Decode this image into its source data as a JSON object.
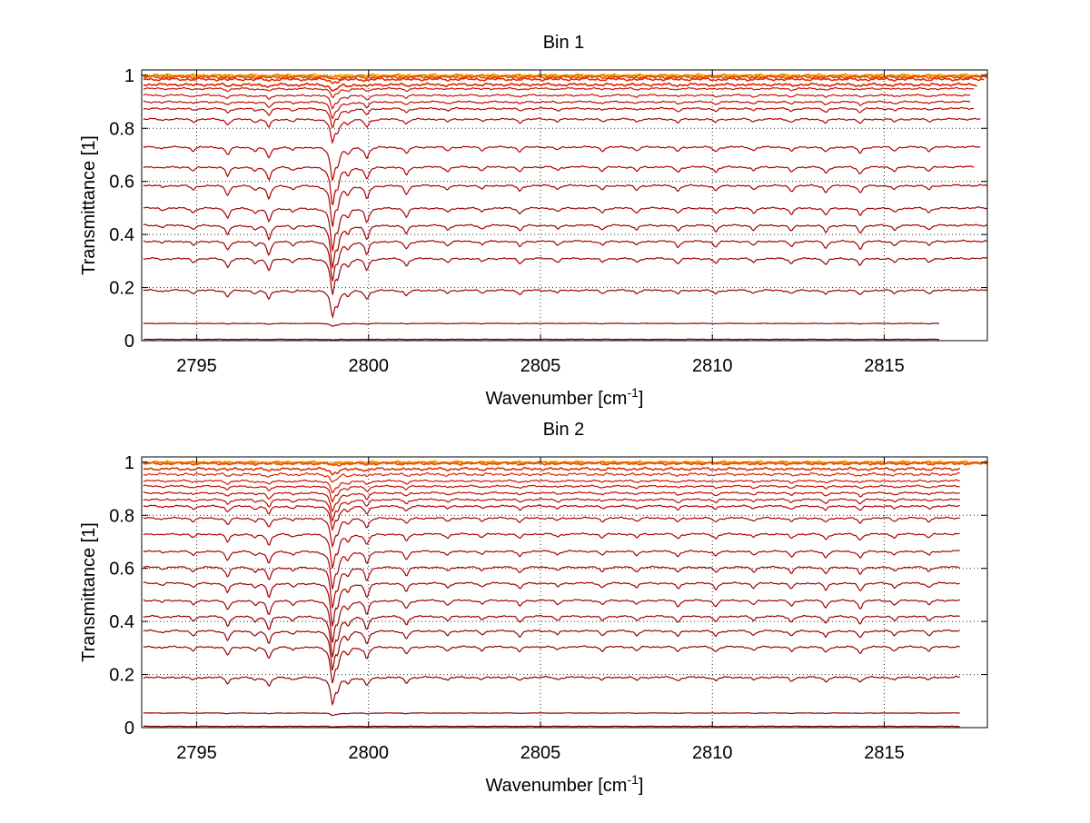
{
  "chart_data": [
    {
      "type": "line",
      "title": "Bin 1",
      "xlabel": "Wavenumber [cm",
      "xlabel_sup": "-1",
      "xlabel_end": "]",
      "ylabel": "Transmittance [1]",
      "xlim": [
        2793.4,
        2818.0
      ],
      "ylim": [
        0,
        1.02
      ],
      "xticks": [
        2795,
        2800,
        2805,
        2810,
        2815
      ],
      "xtick_labels": [
        "2795",
        "2800",
        "2805",
        "2810",
        "2815"
      ],
      "yticks": [
        0,
        0.2,
        0.4,
        0.6,
        0.8,
        1
      ],
      "ytick_labels": [
        "0",
        "0.2",
        "0.4",
        "0.6",
        "0.8",
        "1"
      ],
      "grid": true,
      "series": [
        {
          "baseline": 1.0,
          "x_end": 2818.0,
          "color": "#f0a000"
        },
        {
          "baseline": 0.997,
          "x_end": 2818.0,
          "color": "#f07800"
        },
        {
          "baseline": 0.993,
          "x_end": 2818.0,
          "color": "#e85000"
        },
        {
          "baseline": 0.985,
          "x_end": 2817.9,
          "color": "#e03000"
        },
        {
          "baseline": 0.965,
          "x_end": 2817.7,
          "color": "#d82000"
        },
        {
          "baseline": 0.95,
          "x_end": 2817.6,
          "color": "#d01000"
        },
        {
          "baseline": 0.925,
          "x_end": 2817.5,
          "color": "#c81000"
        },
        {
          "baseline": 0.9,
          "x_end": 2817.5,
          "color": "#c00800"
        },
        {
          "baseline": 0.875,
          "x_end": 2817.6,
          "color": "#b80800"
        },
        {
          "baseline": 0.835,
          "x_end": 2817.8,
          "color": "#b80000"
        },
        {
          "baseline": 0.73,
          "x_end": 2817.8,
          "color": "#b00000"
        },
        {
          "baseline": 0.655,
          "x_end": 2817.6,
          "color": "#b00000"
        },
        {
          "baseline": 0.585,
          "x_end": 2818.0,
          "color": "#a80000"
        },
        {
          "baseline": 0.5,
          "x_end": 2818.0,
          "color": "#a80000"
        },
        {
          "baseline": 0.435,
          "x_end": 2818.0,
          "color": "#a00000"
        },
        {
          "baseline": 0.375,
          "x_end": 2818.0,
          "color": "#a00000"
        },
        {
          "baseline": 0.31,
          "x_end": 2818.0,
          "color": "#980000"
        },
        {
          "baseline": 0.19,
          "x_end": 2818.0,
          "color": "#980000"
        },
        {
          "baseline": 0.065,
          "x_end": 2816.6,
          "color": "#900000"
        },
        {
          "baseline": 0.005,
          "x_end": 2816.6,
          "color": "#800000"
        }
      ]
    },
    {
      "type": "line",
      "title": "Bin 2",
      "xlabel": "Wavenumber [cm",
      "xlabel_sup": "-1",
      "xlabel_end": "]",
      "ylabel": "Transmittance [1]",
      "xlim": [
        2793.4,
        2818.0
      ],
      "ylim": [
        0,
        1.02
      ],
      "xticks": [
        2795,
        2800,
        2805,
        2810,
        2815
      ],
      "xtick_labels": [
        "2795",
        "2800",
        "2805",
        "2810",
        "2815"
      ],
      "yticks": [
        0,
        0.2,
        0.4,
        0.6,
        0.8,
        1
      ],
      "ytick_labels": [
        "0",
        "0.2",
        "0.4",
        "0.6",
        "0.8",
        "1"
      ],
      "grid": true,
      "series": [
        {
          "baseline": 1.0,
          "x_end": 2818.0,
          "color": "#f0a000"
        },
        {
          "baseline": 0.998,
          "x_end": 2818.0,
          "color": "#f07800"
        },
        {
          "baseline": 0.995,
          "x_end": 2818.0,
          "color": "#e85000"
        },
        {
          "baseline": 0.975,
          "x_end": 2817.2,
          "color": "#e03000"
        },
        {
          "baseline": 0.955,
          "x_end": 2817.2,
          "color": "#d82000"
        },
        {
          "baseline": 0.93,
          "x_end": 2817.2,
          "color": "#d01000"
        },
        {
          "baseline": 0.91,
          "x_end": 2817.2,
          "color": "#c81000"
        },
        {
          "baseline": 0.885,
          "x_end": 2817.2,
          "color": "#c00800"
        },
        {
          "baseline": 0.86,
          "x_end": 2817.2,
          "color": "#b80800"
        },
        {
          "baseline": 0.835,
          "x_end": 2817.2,
          "color": "#b80000"
        },
        {
          "baseline": 0.79,
          "x_end": 2817.2,
          "color": "#b00000"
        },
        {
          "baseline": 0.73,
          "x_end": 2817.2,
          "color": "#b00000"
        },
        {
          "baseline": 0.665,
          "x_end": 2817.2,
          "color": "#a80000"
        },
        {
          "baseline": 0.605,
          "x_end": 2817.2,
          "color": "#a80000"
        },
        {
          "baseline": 0.545,
          "x_end": 2817.2,
          "color": "#a00000"
        },
        {
          "baseline": 0.48,
          "x_end": 2817.2,
          "color": "#a00000"
        },
        {
          "baseline": 0.42,
          "x_end": 2817.2,
          "color": "#980000"
        },
        {
          "baseline": 0.365,
          "x_end": 2817.2,
          "color": "#980000"
        },
        {
          "baseline": 0.305,
          "x_end": 2817.2,
          "color": "#980000"
        },
        {
          "baseline": 0.19,
          "x_end": 2817.2,
          "color": "#900000"
        },
        {
          "baseline": 0.055,
          "x_end": 2817.2,
          "color": "#900000"
        },
        {
          "baseline": 0.005,
          "x_end": 2817.2,
          "color": "#800000"
        }
      ]
    }
  ],
  "absorption_lines": [
    {
      "x": 2794.0,
      "strength": 0.05
    },
    {
      "x": 2794.9,
      "strength": 0.12
    },
    {
      "x": 2795.9,
      "strength": 0.25
    },
    {
      "x": 2796.7,
      "strength": 0.12
    },
    {
      "x": 2797.1,
      "strength": 0.35
    },
    {
      "x": 2797.8,
      "strength": 0.1
    },
    {
      "x": 2798.95,
      "strength": 1.0
    },
    {
      "x": 2799.1,
      "strength": 0.45
    },
    {
      "x": 2799.4,
      "strength": 0.2
    },
    {
      "x": 2799.95,
      "strength": 0.35
    },
    {
      "x": 2801.1,
      "strength": 0.22
    },
    {
      "x": 2802.3,
      "strength": 0.12
    },
    {
      "x": 2803.3,
      "strength": 0.1
    },
    {
      "x": 2804.4,
      "strength": 0.15
    },
    {
      "x": 2805.5,
      "strength": 0.1
    },
    {
      "x": 2806.8,
      "strength": 0.12
    },
    {
      "x": 2807.8,
      "strength": 0.12
    },
    {
      "x": 2809.0,
      "strength": 0.15
    },
    {
      "x": 2810.1,
      "strength": 0.15
    },
    {
      "x": 2811.2,
      "strength": 0.12
    },
    {
      "x": 2812.3,
      "strength": 0.15
    },
    {
      "x": 2813.3,
      "strength": 0.18
    },
    {
      "x": 2814.3,
      "strength": 0.2
    },
    {
      "x": 2815.3,
      "strength": 0.12
    },
    {
      "x": 2816.3,
      "strength": 0.12
    }
  ]
}
